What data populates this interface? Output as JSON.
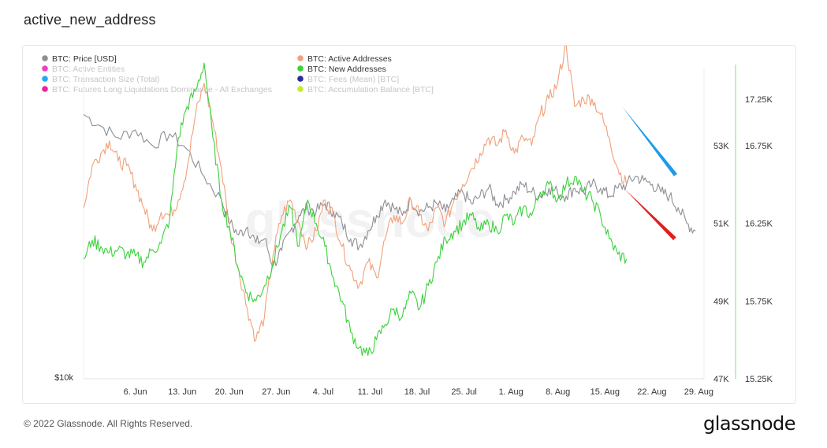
{
  "page": {
    "title": "active_new_address",
    "copyright": "© 2022 Glassnode. All Rights Reserved.",
    "brand": "glassnode",
    "watermark": "glassnode"
  },
  "chart_data": {
    "type": "line",
    "title": "active_new_address",
    "x_ticks": [
      "6. Jun",
      "13. Jun",
      "20. Jun",
      "27. Jun",
      "4. Jul",
      "11. Jul",
      "18. Jul",
      "25. Jul",
      "1. Aug",
      "8. Aug",
      "15. Aug",
      "22. Aug",
      "29. Aug"
    ],
    "left_axis": {
      "label_bottom": "$10k",
      "ylim": [
        0,
        1
      ]
    },
    "price_axis": {
      "ticks": [
        "53K",
        "51K",
        "49K",
        "47K"
      ],
      "tick_values": [
        53000,
        51000,
        49000,
        47000
      ],
      "ylim": [
        47000,
        55000
      ]
    },
    "address_axis": {
      "ticks": [
        "17.25K",
        "16.75K",
        "16.25K",
        "15.75K",
        "15.25K"
      ],
      "tick_values": [
        17250,
        16750,
        16250,
        15750,
        15250
      ],
      "ylim": [
        15250,
        17250
      ]
    },
    "legend": [
      {
        "label": "BTC: Price [USD]",
        "color": "#8e8e96",
        "active": true
      },
      {
        "label": "BTC: Active Addresses",
        "color": "#f0a07a",
        "active": true
      },
      {
        "label": "BTC: Active Entities",
        "color": "#f040c0",
        "active": false
      },
      {
        "label": "BTC: New Addresses",
        "color": "#3ad23a",
        "active": true
      },
      {
        "label": "BTC: Transaction Size (Total)",
        "color": "#2aa8f0",
        "active": false
      },
      {
        "label": "BTC: Fees (Mean) [BTC]",
        "color": "#2a2aa0",
        "active": false
      },
      {
        "label": "BTC: Futures Long Liquidations Dominance - All Exchanges",
        "color": "#f020a0",
        "active": false
      },
      {
        "label": "BTC: Accumulation Balance [BTC]",
        "color": "#c8e830",
        "active": false
      }
    ],
    "series": [
      {
        "name": "BTC: Price [USD]",
        "color": "#8e8e96",
        "axis": "price",
        "points": [
          [
            0,
            53.8
          ],
          [
            2,
            53.5
          ],
          [
            4,
            53.2
          ],
          [
            6,
            53.4
          ],
          [
            8,
            53.0
          ],
          [
            10,
            53.3
          ],
          [
            12,
            52.9
          ],
          [
            14,
            52.2
          ],
          [
            16,
            51.6
          ],
          [
            17,
            51.0
          ],
          [
            18,
            50.7
          ],
          [
            19,
            50.9
          ],
          [
            20,
            50.5
          ],
          [
            21,
            50.6
          ],
          [
            22,
            49.9
          ],
          [
            23,
            50.3
          ],
          [
            24,
            50.8
          ],
          [
            25,
            51.2
          ],
          [
            26,
            51.4
          ],
          [
            27,
            51.3
          ],
          [
            28,
            51.5
          ],
          [
            29,
            51.3
          ],
          [
            30,
            51.0
          ],
          [
            31,
            50.6
          ],
          [
            32,
            50.4
          ],
          [
            33,
            50.8
          ],
          [
            34,
            51.2
          ],
          [
            35,
            51.6
          ],
          [
            36,
            51.4
          ],
          [
            37,
            51.2
          ],
          [
            38,
            51.6
          ],
          [
            39,
            51.3
          ],
          [
            40,
            51.4
          ],
          [
            41,
            51.5
          ],
          [
            42,
            51.3
          ],
          [
            43,
            51.6
          ],
          [
            44,
            51.8
          ],
          [
            45,
            51.5
          ],
          [
            46,
            51.7
          ],
          [
            47,
            51.9
          ],
          [
            48,
            51.5
          ],
          [
            49,
            51.6
          ],
          [
            50,
            51.8
          ],
          [
            51,
            52.0
          ],
          [
            52,
            51.8
          ],
          [
            53,
            51.7
          ],
          [
            54,
            51.9
          ],
          [
            55,
            51.8
          ],
          [
            56,
            51.7
          ],
          [
            57,
            51.9
          ],
          [
            58,
            51.8
          ],
          [
            59,
            52.0
          ],
          [
            60,
            51.9
          ],
          [
            61,
            51.7
          ],
          [
            62,
            51.9
          ],
          [
            63,
            52.0
          ],
          [
            64,
            52.2
          ],
          [
            65,
            52.1
          ],
          [
            66,
            52.0
          ],
          [
            67,
            51.8
          ],
          [
            68,
            51.7
          ],
          [
            69,
            51.4
          ],
          [
            70,
            51.0
          ],
          [
            71,
            50.8
          ]
        ]
      },
      {
        "name": "BTC: Active Addresses",
        "color": "#f0a07a",
        "axis": "address",
        "points": [
          [
            0,
            16.35
          ],
          [
            1,
            16.62
          ],
          [
            2,
            16.7
          ],
          [
            3,
            16.78
          ],
          [
            4,
            16.65
          ],
          [
            5,
            16.62
          ],
          [
            6,
            16.5
          ],
          [
            7,
            16.35
          ],
          [
            8,
            16.2
          ],
          [
            9,
            16.32
          ],
          [
            10,
            16.3
          ],
          [
            11,
            16.4
          ],
          [
            12,
            16.6
          ],
          [
            13,
            16.95
          ],
          [
            14,
            17.15
          ],
          [
            15,
            16.9
          ],
          [
            16,
            16.6
          ],
          [
            17,
            16.2
          ],
          [
            18,
            15.95
          ],
          [
            19,
            15.7
          ],
          [
            20,
            15.5
          ],
          [
            21,
            15.65
          ],
          [
            22,
            16.05
          ],
          [
            23,
            16.3
          ],
          [
            24,
            16.4
          ],
          [
            25,
            16.25
          ],
          [
            26,
            16.1
          ],
          [
            27,
            16.2
          ],
          [
            28,
            16.4
          ],
          [
            29,
            16.3
          ],
          [
            30,
            16.1
          ],
          [
            31,
            15.95
          ],
          [
            32,
            15.85
          ],
          [
            33,
            16.0
          ],
          [
            34,
            15.9
          ],
          [
            35,
            16.15
          ],
          [
            36,
            16.3
          ],
          [
            37,
            16.25
          ],
          [
            38,
            16.4
          ],
          [
            39,
            16.3
          ],
          [
            40,
            16.2
          ],
          [
            41,
            16.35
          ],
          [
            42,
            16.25
          ],
          [
            43,
            16.4
          ],
          [
            44,
            16.5
          ],
          [
            45,
            16.6
          ],
          [
            46,
            16.7
          ],
          [
            47,
            16.8
          ],
          [
            48,
            16.75
          ],
          [
            49,
            16.85
          ],
          [
            50,
            16.7
          ],
          [
            51,
            16.8
          ],
          [
            52,
            16.75
          ],
          [
            53,
            16.95
          ],
          [
            54,
            17.05
          ],
          [
            55,
            17.15
          ],
          [
            56,
            17.4
          ],
          [
            57,
            17.0
          ],
          [
            58,
            17.05
          ],
          [
            59,
            17.05
          ],
          [
            60,
            16.95
          ],
          [
            61,
            16.8
          ],
          [
            62,
            16.6
          ],
          [
            63,
            16.5
          ]
        ]
      },
      {
        "name": "BTC: New Addresses",
        "color": "#3ad23a",
        "axis": "address",
        "points": [
          [
            0,
            16.02
          ],
          [
            1,
            16.14
          ],
          [
            2,
            16.1
          ],
          [
            3,
            16.06
          ],
          [
            4,
            16.08
          ],
          [
            5,
            16.05
          ],
          [
            6,
            16.04
          ],
          [
            7,
            16.0
          ],
          [
            8,
            16.08
          ],
          [
            9,
            16.12
          ],
          [
            10,
            16.28
          ],
          [
            11,
            16.8
          ],
          [
            12,
            17.0
          ],
          [
            13,
            17.1
          ],
          [
            14,
            17.28
          ],
          [
            15,
            16.8
          ],
          [
            16,
            16.4
          ],
          [
            17,
            16.2
          ],
          [
            18,
            15.95
          ],
          [
            19,
            15.8
          ],
          [
            20,
            15.75
          ],
          [
            21,
            15.85
          ],
          [
            22,
            16.0
          ],
          [
            23,
            16.2
          ],
          [
            24,
            16.35
          ],
          [
            25,
            16.1
          ],
          [
            26,
            16.4
          ],
          [
            27,
            16.25
          ],
          [
            28,
            16.1
          ],
          [
            29,
            15.9
          ],
          [
            30,
            15.75
          ],
          [
            31,
            15.55
          ],
          [
            32,
            15.45
          ],
          [
            33,
            15.4
          ],
          [
            34,
            15.5
          ],
          [
            35,
            15.6
          ],
          [
            36,
            15.7
          ],
          [
            37,
            15.65
          ],
          [
            38,
            15.8
          ],
          [
            39,
            15.7
          ],
          [
            40,
            15.85
          ],
          [
            41,
            16.0
          ],
          [
            42,
            16.15
          ],
          [
            43,
            16.2
          ],
          [
            44,
            16.25
          ],
          [
            45,
            16.3
          ],
          [
            46,
            16.2
          ],
          [
            47,
            16.25
          ],
          [
            48,
            16.2
          ],
          [
            49,
            16.3
          ],
          [
            50,
            16.25
          ],
          [
            51,
            16.35
          ],
          [
            52,
            16.3
          ],
          [
            53,
            16.45
          ],
          [
            54,
            16.5
          ],
          [
            55,
            16.4
          ],
          [
            56,
            16.5
          ],
          [
            57,
            16.55
          ],
          [
            58,
            16.45
          ],
          [
            59,
            16.4
          ],
          [
            60,
            16.3
          ],
          [
            61,
            16.15
          ],
          [
            62,
            16.05
          ],
          [
            63,
            16.02
          ]
        ]
      }
    ],
    "x_domain": [
      0,
      72
    ],
    "annotations": [
      {
        "type": "arrow",
        "color": "#1e9be8",
        "from": [
          62.5,
          17.0
        ],
        "to": [
          68.7,
          16.56
        ],
        "axis": "address"
      },
      {
        "type": "arrow",
        "color": "#e02020",
        "from": [
          62.8,
          16.47
        ],
        "to": [
          68.6,
          16.15
        ],
        "axis": "address"
      }
    ]
  }
}
